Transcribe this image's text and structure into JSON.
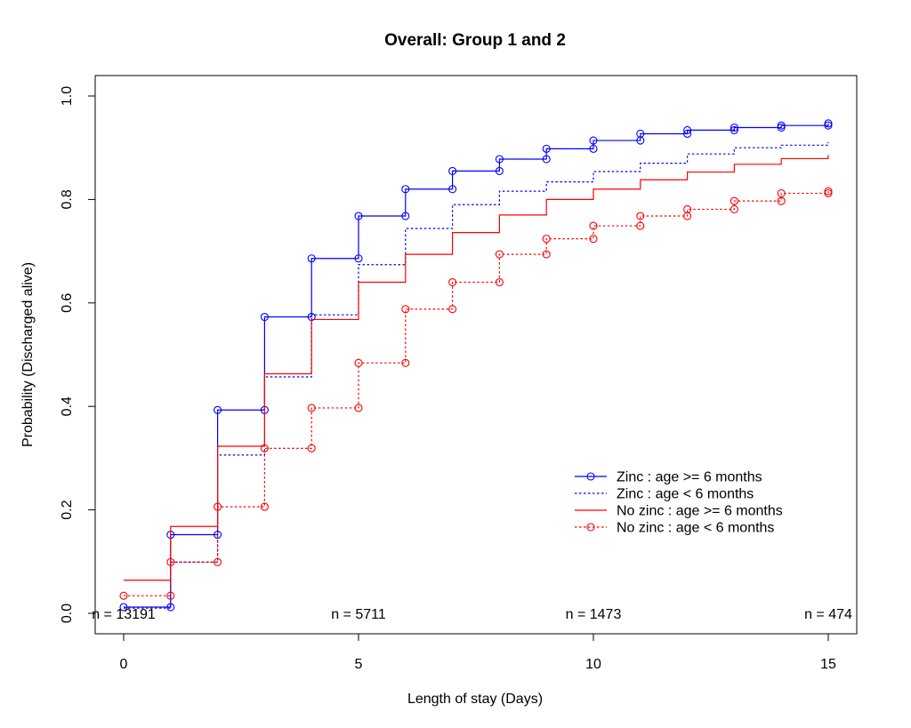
{
  "chart_data": {
    "type": "line",
    "step": true,
    "title": "Overall: Group 1 and 2",
    "xlabel": "Length of stay (Days)",
    "ylabel": "Probability (Discharged alive)",
    "xlim": [
      0,
      15
    ],
    "ylim": [
      0,
      1
    ],
    "x_ticks": [
      0,
      5,
      10,
      15
    ],
    "y_ticks": [
      0.0,
      0.2,
      0.4,
      0.6,
      0.8,
      1.0
    ],
    "y_tick_labels": [
      "0.0",
      "0.2",
      "0.4",
      "0.6",
      "0.8",
      "1.0"
    ],
    "legend_position": "bottom-right",
    "at_risk": [
      {
        "x": 0,
        "label": "n = 13191"
      },
      {
        "x": 5,
        "label": "n = 5711"
      },
      {
        "x": 10,
        "label": "n = 1473"
      },
      {
        "x": 15,
        "label": "n = 474"
      }
    ],
    "series": [
      {
        "name": "Zinc : age >= 6 months",
        "color": "#0000ff",
        "dash": "solid",
        "markers": true,
        "x": [
          0,
          1,
          2,
          3,
          4,
          5,
          6,
          7,
          8,
          9,
          10,
          11,
          12,
          13,
          14,
          15
        ],
        "values": [
          0.012,
          0.152,
          0.393,
          0.573,
          0.686,
          0.768,
          0.82,
          0.855,
          0.878,
          0.898,
          0.914,
          0.927,
          0.934,
          0.939,
          0.943,
          0.947
        ]
      },
      {
        "name": "Zinc : age < 6 months",
        "color": "#0000ff",
        "dash": "dotted",
        "markers": false,
        "x": [
          0,
          1,
          2,
          3,
          4,
          5,
          6,
          7,
          8,
          9,
          10,
          11,
          12,
          13,
          14,
          15
        ],
        "values": [
          0.01,
          0.099,
          0.306,
          0.457,
          0.577,
          0.674,
          0.744,
          0.79,
          0.816,
          0.834,
          0.854,
          0.87,
          0.888,
          0.9,
          0.905,
          0.911
        ]
      },
      {
        "name": "No zinc : age >= 6 months",
        "color": "#ff0000",
        "dash": "solid",
        "markers": false,
        "x": [
          0,
          1,
          2,
          3,
          4,
          5,
          6,
          7,
          8,
          9,
          10,
          11,
          12,
          13,
          14,
          15
        ],
        "values": [
          0.064,
          0.168,
          0.323,
          0.463,
          0.568,
          0.64,
          0.694,
          0.736,
          0.77,
          0.8,
          0.82,
          0.838,
          0.853,
          0.868,
          0.879,
          0.886
        ]
      },
      {
        "name": "No zinc : age < 6 months",
        "color": "#ff0000",
        "dash": "dotted",
        "markers": true,
        "x": [
          0,
          1,
          2,
          3,
          4,
          5,
          6,
          7,
          8,
          9,
          10,
          11,
          12,
          13,
          14,
          15
        ],
        "values": [
          0.034,
          0.099,
          0.206,
          0.319,
          0.397,
          0.484,
          0.588,
          0.64,
          0.694,
          0.724,
          0.749,
          0.768,
          0.781,
          0.797,
          0.812,
          0.816
        ]
      }
    ]
  }
}
